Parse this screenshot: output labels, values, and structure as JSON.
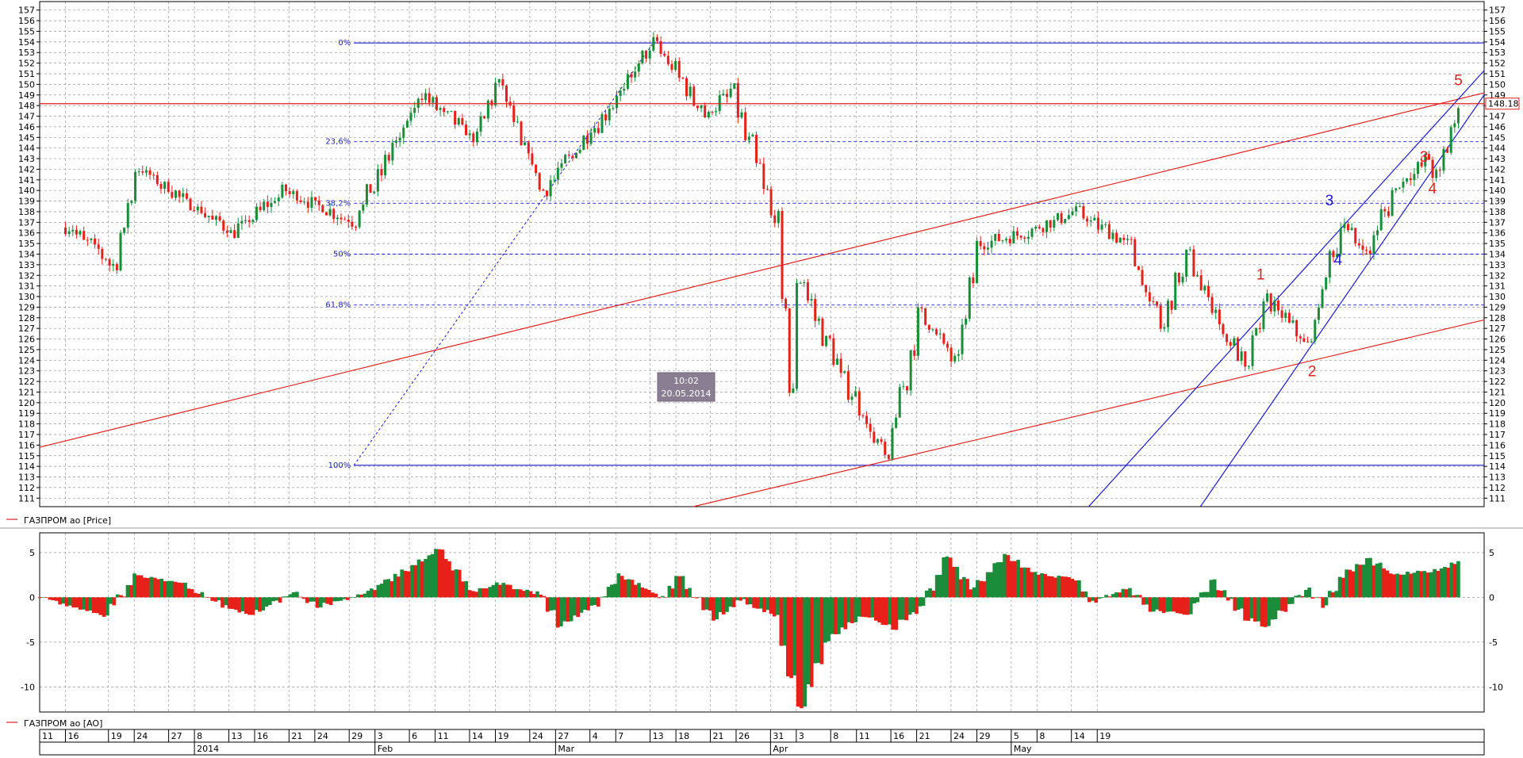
{
  "chart_data": [
    {
      "type": "line",
      "title": "",
      "series": [
        {
          "name": "ГАЗПРОМ ао [Price]"
        }
      ],
      "ylim": [
        110.2,
        157.8
      ],
      "y_ticks": [
        111,
        112,
        113,
        114,
        115,
        116,
        117,
        118,
        119,
        120,
        121,
        122,
        123,
        124,
        125,
        126,
        127,
        128,
        129,
        130,
        131,
        132,
        133,
        134,
        135,
        136,
        137,
        138,
        139,
        140,
        141,
        142,
        143,
        144,
        145,
        146,
        147,
        148,
        149,
        150,
        151,
        152,
        153,
        154,
        155,
        156,
        157
      ],
      "last_price_label": "148.18",
      "last_price": 148.18,
      "horizontal_line": 148.18,
      "key_points": [
        {
          "x": "2014-01-09",
          "y": 136.5
        },
        {
          "x": "2014-01-14",
          "y": 133
        },
        {
          "x": "2014-01-17",
          "y": 142
        },
        {
          "x": "2014-01-28",
          "y": 136
        },
        {
          "x": "2014-02-03",
          "y": 140
        },
        {
          "x": "2014-02-11",
          "y": 137
        },
        {
          "x": "2014-02-19",
          "y": 149
        },
        {
          "x": "2014-02-25",
          "y": 145
        },
        {
          "x": "2014-02-28",
          "y": 150
        },
        {
          "x": "2014-03-05",
          "y": 140
        },
        {
          "x": "2014-03-13",
          "y": 148
        },
        {
          "x": "2014-03-18",
          "y": 154
        },
        {
          "x": "2014-03-24",
          "y": 147
        },
        {
          "x": "2014-03-27",
          "y": 149.5
        },
        {
          "x": "2014-04-01",
          "y": 137.5
        },
        {
          "x": "2014-04-03",
          "y": 121
        },
        {
          "x": "2014-04-04",
          "y": 131.5
        },
        {
          "x": "2014-04-08",
          "y": 124
        },
        {
          "x": "2014-04-14",
          "y": 114.5
        },
        {
          "x": "2014-04-18",
          "y": 128.5
        },
        {
          "x": "2014-04-22",
          "y": 124
        },
        {
          "x": "2014-04-25",
          "y": 135
        },
        {
          "x": "2014-04-30",
          "y": 136
        },
        {
          "x": "2014-05-06",
          "y": 138
        },
        {
          "x": "2014-05-12",
          "y": 135
        },
        {
          "x": "2014-05-16",
          "y": 127
        },
        {
          "x": "2014-05-19",
          "y": 134
        },
        {
          "x": "2014-05-23",
          "y": 127
        },
        {
          "x": "2014-05-26",
          "y": 123
        },
        {
          "x": "2014-05-28",
          "y": 130
        },
        {
          "x": "2014-06-02",
          "y": 125.5
        },
        {
          "x": "2014-06-06",
          "y": 137
        },
        {
          "x": "2014-06-09",
          "y": 134
        },
        {
          "x": "2014-06-12",
          "y": 140
        },
        {
          "x": "2014-06-16",
          "y": 143
        },
        {
          "x": "2014-06-17",
          "y": 141.5
        },
        {
          "x": "2014-06-20",
          "y": 148.2
        }
      ],
      "fibonacci": {
        "levels": [
          {
            "label": "0%",
            "value": 153.9
          },
          {
            "label": "23,6%",
            "value": 144.6
          },
          {
            "label": "38,2%",
            "value": 138.8
          },
          {
            "label": "50%",
            "value": 134.0
          },
          {
            "label": "61,8%",
            "value": 129.2
          },
          {
            "label": "100%",
            "value": 114.1
          }
        ]
      },
      "wave_labels": [
        {
          "text": "1",
          "color": "#e02020",
          "x": "2014-05-28",
          "y": 131.6
        },
        {
          "text": "2",
          "color": "#e02020",
          "x": "2014-06-03",
          "y": 122.5
        },
        {
          "text": "3",
          "color": "#e02020",
          "x": "2014-06-16",
          "y": 142.7
        },
        {
          "text": "4",
          "color": "#e02020",
          "x": "2014-06-17",
          "y": 139.7
        },
        {
          "text": "5",
          "color": "#e02020",
          "x": "2014-06-20",
          "y": 149.9
        },
        {
          "text": "3",
          "color": "#1a1ad0",
          "x": "2014-06-05",
          "y": 138.6
        },
        {
          "text": "4",
          "color": "#1a1ad0",
          "x": "2014-06-06",
          "y": 133.0
        }
      ],
      "trendlines": [
        {
          "color": "#e02020",
          "from": {
            "x": "2014-01-06",
            "y": 115.8
          },
          "to": {
            "x": "2014-06-23",
            "y": 149.2
          }
        },
        {
          "color": "#e02020",
          "from": {
            "x": "2014-03-23",
            "y": 110.2
          },
          "to": {
            "x": "2014-06-23",
            "y": 127.8
          }
        },
        {
          "color": "#1a1ad0",
          "from": {
            "x": "2014-05-08",
            "y": 110.2
          },
          "to": {
            "x": "2014-06-23",
            "y": 151.3
          }
        },
        {
          "color": "#1a1ad0",
          "from": {
            "x": "2014-05-21",
            "y": 110.2
          },
          "to": {
            "x": "2014-06-23",
            "y": 149
          }
        }
      ],
      "cursor": {
        "time": "10:02",
        "date": "20.05.2014"
      }
    },
    {
      "type": "bar",
      "title": "",
      "series": [
        {
          "name": "ГАЗПРОМ ао [AO]"
        }
      ],
      "ylim": [
        -12.8,
        7.2
      ],
      "y_ticks": [
        5,
        0,
        -5,
        -10
      ],
      "y_tick_labels": [
        "5",
        "0",
        "-5",
        "-10"
      ],
      "key_points": [
        {
          "x": "2014-01-06",
          "y": 0
        },
        {
          "x": "2014-01-09",
          "y": -1
        },
        {
          "x": "2014-01-13",
          "y": -2
        },
        {
          "x": "2014-01-17",
          "y": 2.5
        },
        {
          "x": "2014-01-22",
          "y": 1.5
        },
        {
          "x": "2014-01-27",
          "y": -1
        },
        {
          "x": "2014-01-30",
          "y": -2
        },
        {
          "x": "2014-02-04",
          "y": 0.5
        },
        {
          "x": "2014-02-07",
          "y": -1
        },
        {
          "x": "2014-02-12",
          "y": 0.3
        },
        {
          "x": "2014-02-17",
          "y": 3
        },
        {
          "x": "2014-02-21",
          "y": 5.3
        },
        {
          "x": "2014-02-25",
          "y": 0.7
        },
        {
          "x": "2014-02-28",
          "y": 1.5
        },
        {
          "x": "2014-03-05",
          "y": 0.3
        },
        {
          "x": "2014-03-07",
          "y": -3.2
        },
        {
          "x": "2014-03-11",
          "y": -1
        },
        {
          "x": "2014-03-14",
          "y": 2.5
        },
        {
          "x": "2014-03-19",
          "y": 0
        },
        {
          "x": "2014-03-21",
          "y": 2.3
        },
        {
          "x": "2014-03-25",
          "y": -2.5
        },
        {
          "x": "2014-03-28",
          "y": -0.3
        },
        {
          "x": "2014-04-01",
          "y": -2
        },
        {
          "x": "2014-04-04",
          "y": -12.3
        },
        {
          "x": "2014-04-07",
          "y": -5
        },
        {
          "x": "2014-04-11",
          "y": -2
        },
        {
          "x": "2014-04-15",
          "y": -3.5
        },
        {
          "x": "2014-04-18",
          "y": -1
        },
        {
          "x": "2014-04-21",
          "y": 4.5
        },
        {
          "x": "2014-04-24",
          "y": 1
        },
        {
          "x": "2014-04-28",
          "y": 4.8
        },
        {
          "x": "2014-05-01",
          "y": 2.8
        },
        {
          "x": "2014-05-06",
          "y": 2
        },
        {
          "x": "2014-05-08",
          "y": -0.5
        },
        {
          "x": "2014-05-12",
          "y": 1
        },
        {
          "x": "2014-05-15",
          "y": -1.5
        },
        {
          "x": "2014-05-19",
          "y": -2
        },
        {
          "x": "2014-05-22",
          "y": 2
        },
        {
          "x": "2014-05-26",
          "y": -2.5
        },
        {
          "x": "2014-05-28",
          "y": -3.2
        },
        {
          "x": "2014-06-02",
          "y": 1
        },
        {
          "x": "2014-06-04",
          "y": -1
        },
        {
          "x": "2014-06-06",
          "y": 2.3
        },
        {
          "x": "2014-06-09",
          "y": 4.3
        },
        {
          "x": "2014-06-12",
          "y": 2.5
        },
        {
          "x": "2014-06-17",
          "y": 3
        },
        {
          "x": "2014-06-20",
          "y": 4.2
        }
      ],
      "up_color": "#1a8c3a",
      "down_color": "#e8201a"
    }
  ],
  "x_axis": {
    "day_ticks": [
      {
        "label": "11",
        "date": "2014-01-06"
      },
      {
        "label": "16",
        "date": "2014-01-09"
      },
      {
        "label": "19",
        "date": "2014-01-14"
      },
      {
        "label": "24",
        "date": "2014-01-17"
      },
      {
        "label": "27",
        "date": "2014-01-21"
      },
      {
        "label": "8",
        "date": "2014-01-24"
      },
      {
        "label": "13",
        "date": "2014-01-28"
      },
      {
        "label": "16",
        "date": "2014-01-31"
      },
      {
        "label": "21",
        "date": "2014-02-04"
      },
      {
        "label": "24",
        "date": "2014-02-07"
      },
      {
        "label": "29",
        "date": "2014-02-11"
      },
      {
        "label": "3",
        "date": "2014-02-14"
      },
      {
        "label": "6",
        "date": "2014-02-18"
      },
      {
        "label": "11",
        "date": "2014-02-21"
      },
      {
        "label": "14",
        "date": "2014-02-25"
      },
      {
        "label": "19",
        "date": "2014-02-28"
      },
      {
        "label": "24",
        "date": "2014-03-04"
      },
      {
        "label": "27",
        "date": "2014-03-07"
      },
      {
        "label": "4",
        "date": "2014-03-11"
      },
      {
        "label": "7",
        "date": "2014-03-14"
      },
      {
        "label": "13",
        "date": "2014-03-18"
      },
      {
        "label": "18",
        "date": "2014-03-21"
      },
      {
        "label": "21",
        "date": "2014-03-25"
      },
      {
        "label": "26",
        "date": "2014-03-28"
      },
      {
        "label": "31",
        "date": "2014-04-01"
      },
      {
        "label": "3",
        "date": "2014-04-04"
      },
      {
        "label": "8",
        "date": "2014-04-08"
      },
      {
        "label": "11",
        "date": "2014-04-11"
      },
      {
        "label": "16",
        "date": "2014-04-15"
      },
      {
        "label": "21",
        "date": "2014-04-18"
      },
      {
        "label": "24",
        "date": "2014-04-22"
      },
      {
        "label": "29",
        "date": "2014-04-25"
      },
      {
        "label": "5",
        "date": "2014-04-29"
      },
      {
        "label": "8",
        "date": "2014-05-02"
      },
      {
        "label": "14",
        "date": "2014-05-06"
      },
      {
        "label": "19",
        "date": "2014-05-09"
      }
    ],
    "month_ticks": [
      {
        "label": "2014",
        "date": "2014-01-24"
      },
      {
        "label": "Feb",
        "date": "2014-02-14"
      },
      {
        "label": "Mar",
        "date": "2014-03-07"
      },
      {
        "label": "Apr",
        "date": "2014-04-01"
      },
      {
        "label": "May",
        "date": "2014-04-29"
      }
    ]
  }
}
